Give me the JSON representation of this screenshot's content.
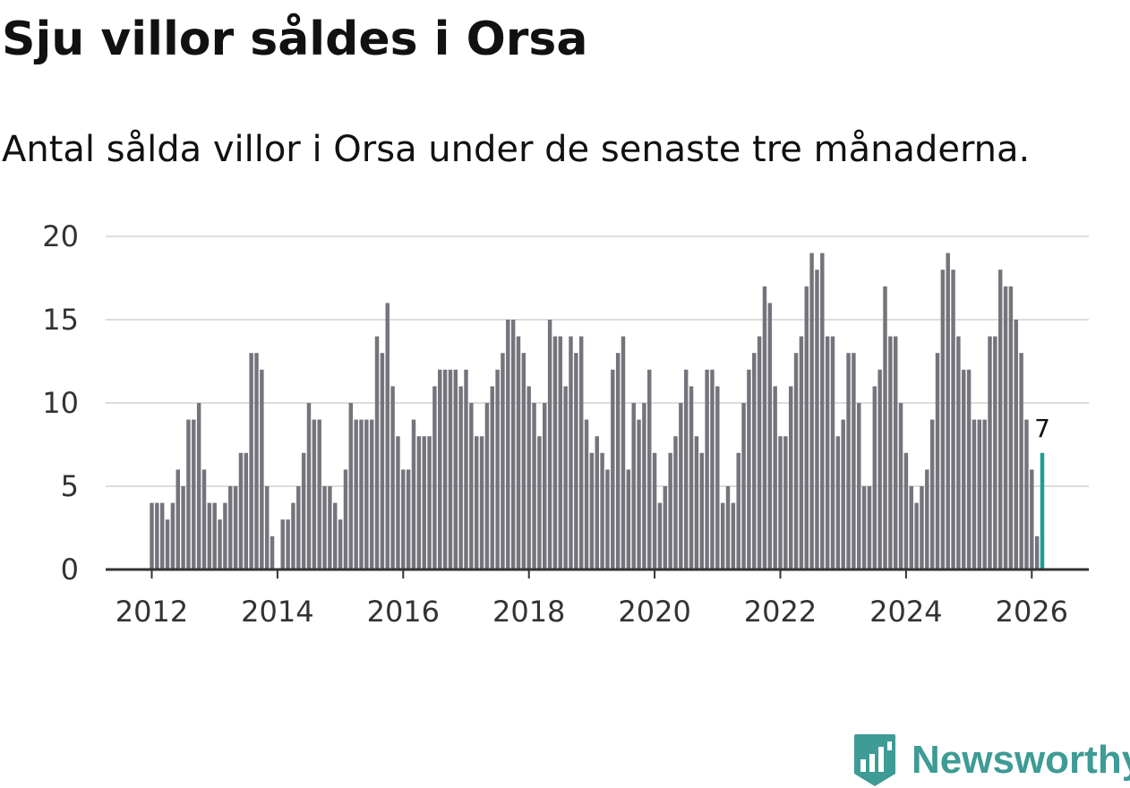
{
  "title": "Sju villor såldes i Orsa",
  "subtitle": "Antal sålda villor i Orsa under de senaste tre månaderna.",
  "brand": {
    "name": "Newsworthy",
    "color": "#3e9b95"
  },
  "colors": {
    "bar": "#75747c",
    "highlight": "#1a9e96",
    "grid": "#dddddd",
    "axis": "#333333"
  },
  "chart_data": {
    "type": "bar",
    "title": "Sju villor såldes i Orsa",
    "subtitle": "Antal sålda villor i Orsa under de senaste tre månaderna.",
    "xlabel": "",
    "ylabel": "",
    "ylim": [
      0,
      20
    ],
    "y_ticks": [
      "0",
      "5",
      "10",
      "15",
      "20"
    ],
    "x_ticks": [
      "2012",
      "2014",
      "2016",
      "2018",
      "2020",
      "2022",
      "2024",
      "2026"
    ],
    "x_start": "2012-01",
    "x_end": "2026-03",
    "frequency": "monthly",
    "grid": true,
    "highlight_label": "7",
    "values": [
      4,
      4,
      4,
      3,
      4,
      6,
      5,
      9,
      9,
      10,
      6,
      4,
      4,
      3,
      4,
      5,
      5,
      7,
      7,
      13,
      13,
      12,
      5,
      2,
      0,
      3,
      3,
      4,
      5,
      7,
      10,
      9,
      9,
      5,
      5,
      4,
      3,
      6,
      10,
      9,
      9,
      9,
      9,
      14,
      13,
      16,
      11,
      8,
      6,
      6,
      9,
      8,
      8,
      8,
      11,
      12,
      12,
      12,
      12,
      11,
      12,
      10,
      8,
      8,
      10,
      11,
      12,
      13,
      15,
      15,
      14,
      13,
      11,
      10,
      8,
      10,
      15,
      14,
      14,
      11,
      14,
      13,
      14,
      9,
      7,
      8,
      7,
      6,
      12,
      13,
      14,
      6,
      10,
      9,
      10,
      12,
      7,
      4,
      5,
      7,
      8,
      10,
      12,
      11,
      8,
      7,
      12,
      12,
      11,
      4,
      5,
      4,
      7,
      10,
      12,
      13,
      14,
      17,
      16,
      11,
      8,
      8,
      11,
      13,
      14,
      17,
      19,
      18,
      19,
      14,
      14,
      8,
      9,
      13,
      13,
      10,
      5,
      5,
      11,
      12,
      17,
      14,
      14,
      10,
      7,
      5,
      4,
      5,
      6,
      9,
      13,
      18,
      19,
      18,
      14,
      12,
      12,
      9,
      9,
      9,
      14,
      14,
      18,
      17,
      17,
      15,
      13,
      9,
      6,
      2,
      7
    ]
  }
}
